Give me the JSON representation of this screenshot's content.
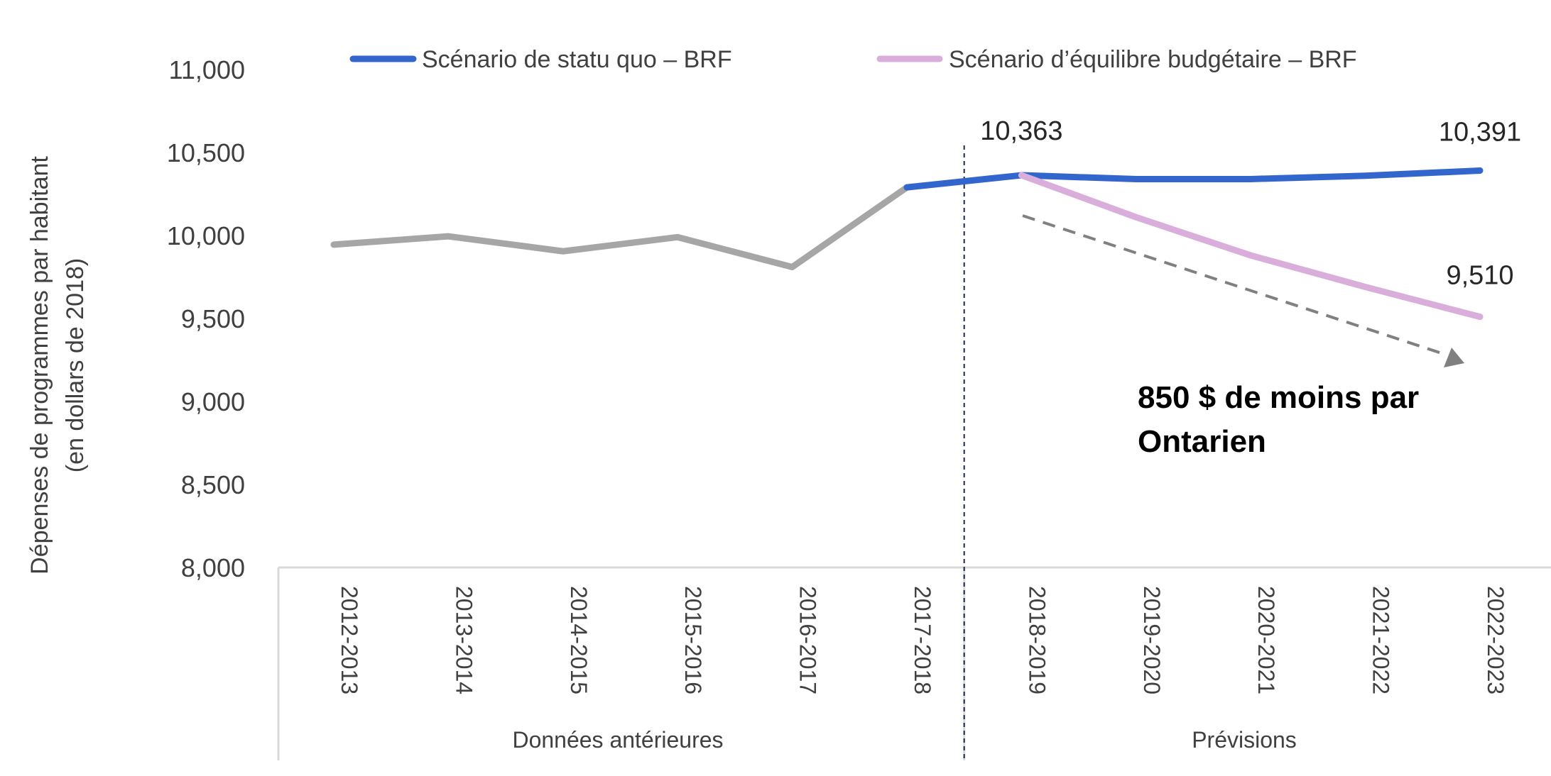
{
  "chart_data": {
    "type": "line",
    "categories": [
      "2012-2013",
      "2013-2014",
      "2014-2015",
      "2015-2016",
      "2016-2017",
      "2017-2018",
      "2018-2019",
      "2019-2020",
      "2020-2021",
      "2021-2022",
      "2022-2023"
    ],
    "groups": [
      {
        "label": "Données antérieures",
        "from": 0,
        "to": 5
      },
      {
        "label": "Prévisions",
        "from": 6,
        "to": 10
      }
    ],
    "ylabel_line1": "Dépenses de programmes par habitant",
    "ylabel_line2": "(en dollars de 2018)",
    "ylim": [
      8000,
      11000
    ],
    "yticks": [
      8000,
      8500,
      9000,
      9500,
      10000,
      10500,
      11000
    ],
    "ytick_labels": [
      "8,000",
      "8,500",
      "9,000",
      "9,500",
      "10,000",
      "10,500",
      "11,000"
    ],
    "grid": false,
    "legend_position": "top",
    "series": [
      {
        "key": "historical",
        "color": "#a6a6a6",
        "x": [
          0,
          1,
          2,
          3,
          4,
          5
        ],
        "values": [
          9945,
          9995,
          9905,
          9990,
          9810,
          10290
        ]
      },
      {
        "key": "status_quo",
        "name": "Scénario de statu quo – BRF",
        "color": "#3366cc",
        "x": [
          5,
          6,
          7,
          8,
          9,
          10
        ],
        "values": [
          10290,
          10363,
          10340,
          10340,
          10360,
          10391
        ]
      },
      {
        "key": "balanced",
        "name": "Scénario d’équilibre budgétaire – BRF",
        "color": "#d9aedb",
        "x": [
          6,
          7,
          8,
          9,
          10
        ],
        "values": [
          10363,
          10110,
          9880,
          9690,
          9510
        ]
      }
    ],
    "data_labels": [
      {
        "text": "10,363",
        "x": 6,
        "value": 10363
      },
      {
        "text": "10,391",
        "x": 10,
        "value": 10391
      },
      {
        "text": "9,510",
        "x": 10,
        "value": 9510
      }
    ],
    "annotation": {
      "line1": "850 $ de moins par",
      "line2": "Ontarien",
      "arrow_from": {
        "x": 6.1,
        "value": 10110
      },
      "arrow_to": {
        "x": 10,
        "value": 9245
      }
    },
    "divider_at": 5.5
  }
}
